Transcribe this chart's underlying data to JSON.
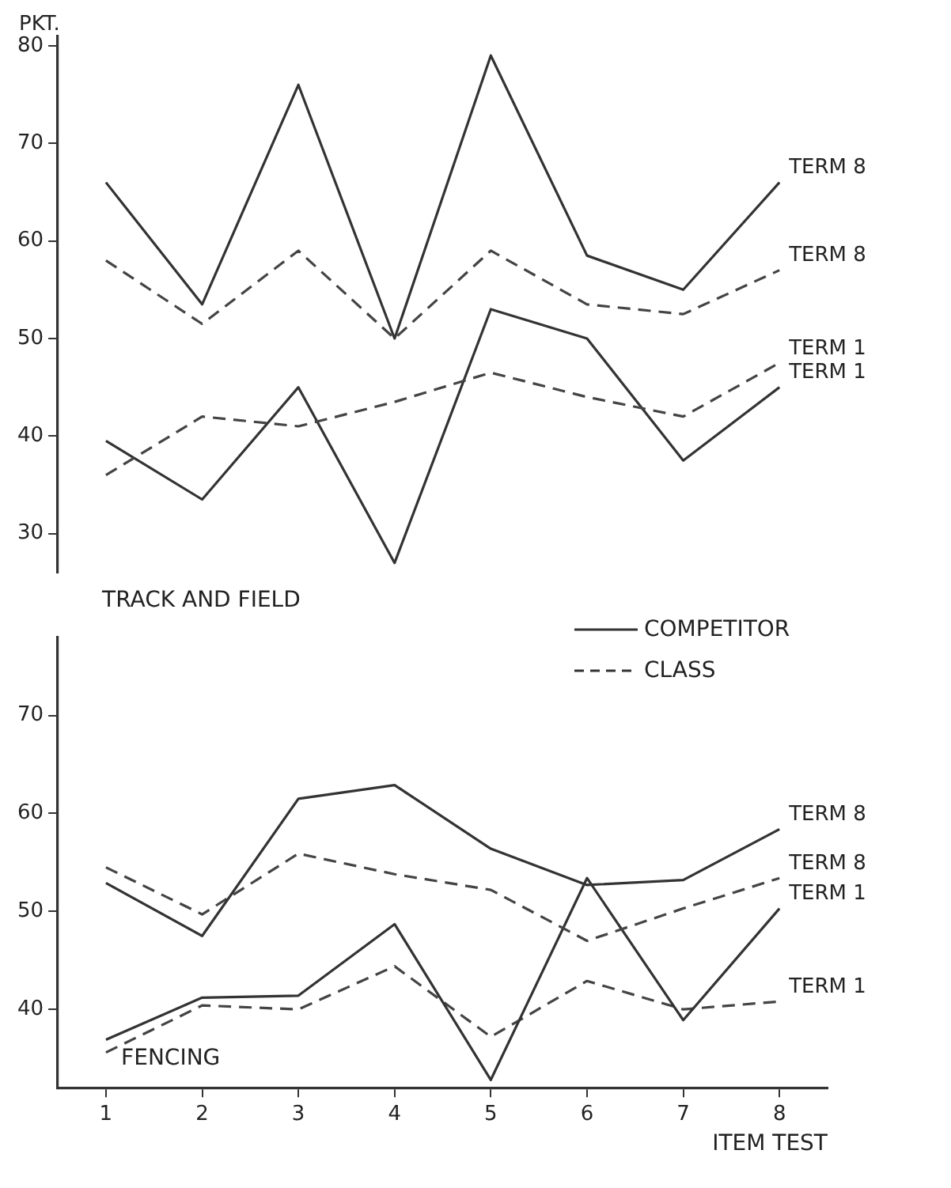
{
  "chart_data": [
    {
      "type": "line",
      "title": "TRACK AND FIELD",
      "ylabel": "PKT.",
      "categories": [
        "1",
        "2",
        "3",
        "4",
        "5",
        "6",
        "7",
        "8"
      ],
      "ylim": [
        26,
        81
      ],
      "yticks": [
        30,
        40,
        50,
        60,
        70,
        80
      ],
      "tick_labels": "y",
      "marker": "none",
      "series": [
        {
          "name": "TERM 8",
          "color": "#333333",
          "line_style": "solid",
          "values": [
            66,
            53.5,
            76,
            50,
            79,
            58.5,
            55,
            66
          ]
        },
        {
          "name": "TERM 8",
          "color": "#444444",
          "line_style": "dashed",
          "values": [
            58,
            51.5,
            59,
            50,
            59,
            53.5,
            52.5,
            57
          ]
        },
        {
          "name": "TERM 1",
          "color": "#444444",
          "line_style": "dashed",
          "values": [
            36,
            42,
            41,
            43.5,
            46.5,
            44,
            42,
            47.5
          ]
        },
        {
          "name": "TERM 1",
          "color": "#333333",
          "line_style": "solid",
          "values": [
            39.5,
            33.5,
            45,
            27,
            53,
            50,
            37.5,
            45
          ]
        }
      ]
    },
    {
      "type": "line",
      "title": "FENCING",
      "xlabel": "ITEM TEST",
      "categories": [
        "1",
        "2",
        "3",
        "4",
        "5",
        "6",
        "7",
        "8"
      ],
      "ylim": [
        32,
        78
      ],
      "yticks": [
        40,
        50,
        60,
        70
      ],
      "marker": "none",
      "annotations": [
        "COMPETITOR",
        "CLASS"
      ],
      "series": [
        {
          "name": "TERM 8",
          "color": "#333333",
          "line_style": "solid",
          "values": [
            52.9,
            47.5,
            61.5,
            62.9,
            56.4,
            52.7,
            53.2,
            58.4
          ]
        },
        {
          "name": "TERM 8",
          "color": "#444444",
          "line_style": "dashed",
          "values": [
            54.5,
            49.7,
            55.9,
            53.8,
            52.2,
            47,
            50.3,
            53.4
          ]
        },
        {
          "name": "TERM 1",
          "color": "#333333",
          "line_style": "solid",
          "values": [
            36.9,
            41.2,
            41.4,
            48.7,
            32.8,
            53.4,
            38.9,
            50.3
          ]
        },
        {
          "name": "TERM 1",
          "color": "#444444",
          "line_style": "dashed",
          "values": [
            35.6,
            40.4,
            40,
            44.4,
            37.2,
            42.9,
            40,
            40.8
          ]
        }
      ]
    }
  ]
}
